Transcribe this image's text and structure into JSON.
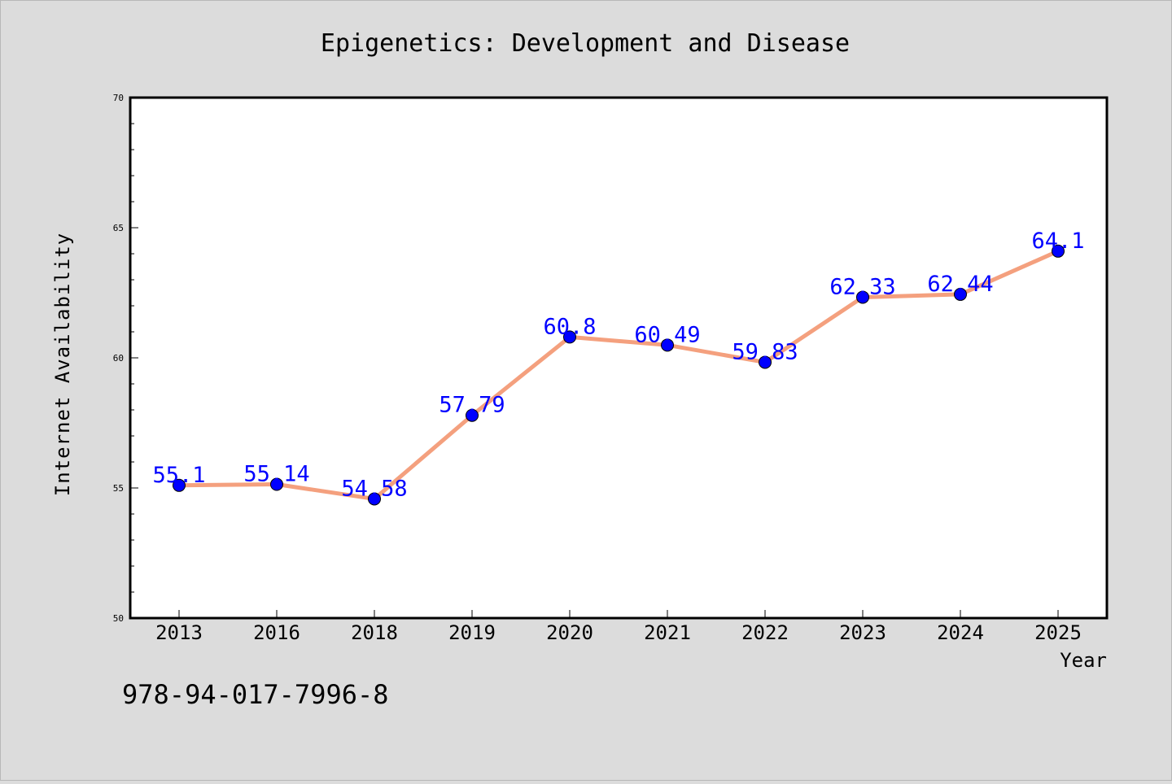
{
  "figure": {
    "background": "#dcdcdc",
    "footer_text": "978-94-017-7996-8"
  },
  "chart_data": {
    "type": "line",
    "title": "Epigenetics: Development and Disease",
    "xlabel": "Year",
    "ylabel": "Internet Availability",
    "categories": [
      "2013",
      "2016",
      "2018",
      "2019",
      "2020",
      "2021",
      "2022",
      "2023",
      "2024",
      "2025"
    ],
    "series": [
      {
        "values": [
          55.1,
          55.14,
          54.58,
          57.79,
          60.8,
          60.49,
          59.83,
          62.33,
          62.44,
          64.1
        ],
        "data_labels": [
          "55.1",
          "55.14",
          "54.58",
          "57.79",
          "60.8",
          "60.49",
          "59.83",
          "62.33",
          "62.44",
          "64.1"
        ],
        "line_color": "#f4a07e",
        "marker_color": "#0000ff",
        "label_color": "#0000ff"
      }
    ],
    "ylim": [
      50,
      70
    ],
    "yticks": [
      50,
      55,
      60,
      65,
      70
    ],
    "ytick_labels": [
      "50",
      "55",
      "60",
      "65",
      "70"
    ],
    "y_minor_step": 1,
    "grid": false,
    "legend": "none",
    "plot_background": "#ffffff"
  }
}
